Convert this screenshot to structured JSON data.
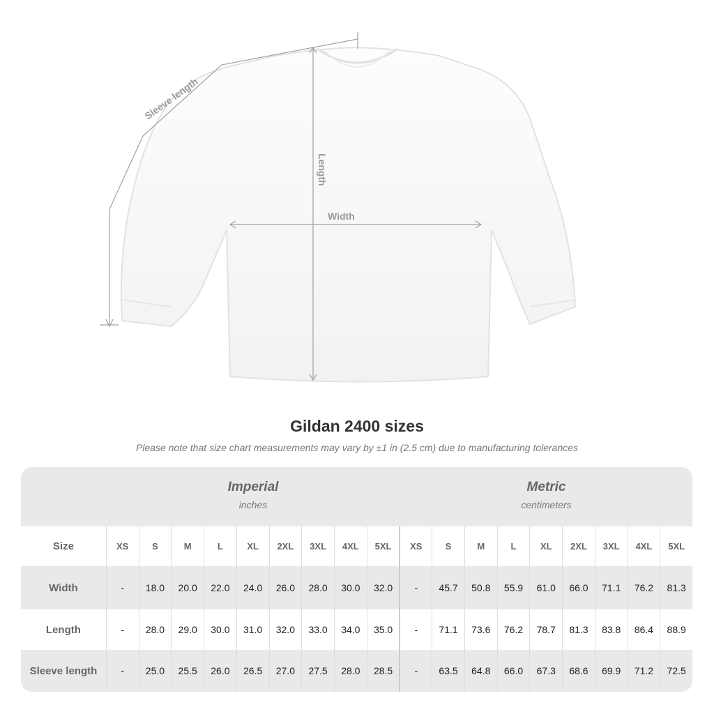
{
  "diagram": {
    "sleeve_label": "Sleeve length",
    "length_label": "Length",
    "width_label": "Width"
  },
  "title": "Gildan 2400 sizes",
  "note": "Please note that size chart measurements may vary by ±1 in (2.5 cm) due to manufacturing tolerances",
  "imperial": {
    "label": "Imperial",
    "unit": "inches"
  },
  "metric": {
    "label": "Metric",
    "unit": "centimeters"
  },
  "size_header": "Size",
  "sizes": [
    "XS",
    "S",
    "M",
    "L",
    "XL",
    "2XL",
    "3XL",
    "4XL",
    "5XL"
  ],
  "rows": [
    {
      "label": "Width",
      "imperial": [
        "-",
        "18.0",
        "20.0",
        "22.0",
        "24.0",
        "26.0",
        "28.0",
        "30.0",
        "32.0"
      ],
      "metric": [
        "-",
        "45.7",
        "50.8",
        "55.9",
        "61.0",
        "66.0",
        "71.1",
        "76.2",
        "81.3"
      ]
    },
    {
      "label": "Length",
      "imperial": [
        "-",
        "28.0",
        "29.0",
        "30.0",
        "31.0",
        "32.0",
        "33.0",
        "34.0",
        "35.0"
      ],
      "metric": [
        "-",
        "71.1",
        "73.6",
        "76.2",
        "78.7",
        "81.3",
        "83.8",
        "86.4",
        "88.9"
      ]
    },
    {
      "label": "Sleeve length",
      "imperial": [
        "-",
        "25.0",
        "25.5",
        "26.0",
        "26.5",
        "27.0",
        "27.5",
        "28.0",
        "28.5"
      ],
      "metric": [
        "-",
        "63.5",
        "64.8",
        "66.0",
        "67.3",
        "68.6",
        "69.9",
        "71.2",
        "72.5"
      ]
    }
  ]
}
